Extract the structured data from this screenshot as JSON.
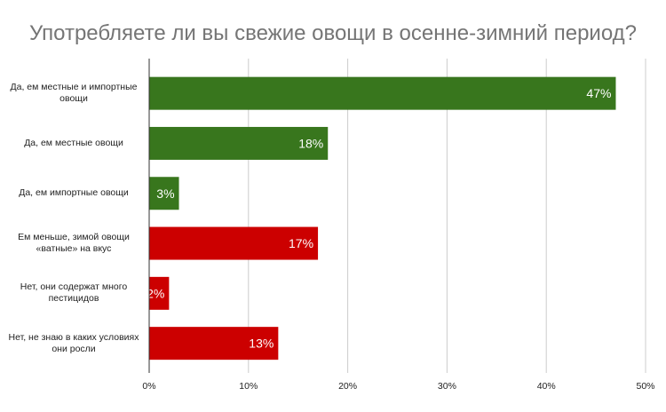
{
  "chart_data": {
    "type": "bar",
    "orientation": "horizontal",
    "title": "Употребляете ли вы свежие овощи в осенне-зимний период?",
    "categories": [
      "Да, ем местные и импортные овощи",
      "Да, ем местные овощи",
      "Да, ем импортные овощи",
      "Ем меньше, зимой овощи «ватные» на вкус",
      "Нет, они содержат много пестицидов",
      "Нет, не знаю в каких условиях они росли"
    ],
    "values": [
      47,
      18,
      3,
      17,
      2,
      13
    ],
    "data_labels": [
      "47%",
      "18%",
      "3%",
      "17%",
      "2%",
      "13%"
    ],
    "colors": [
      "#38761d",
      "#38761d",
      "#38761d",
      "#cc0000",
      "#cc0000",
      "#cc0000"
    ],
    "x_ticks": [
      0,
      10,
      20,
      30,
      40,
      50
    ],
    "x_tick_labels": [
      "0%",
      "10%",
      "20%",
      "30%",
      "40%",
      "50%"
    ],
    "xlim": [
      0,
      50
    ],
    "grid": true,
    "xlabel": "",
    "ylabel": ""
  }
}
